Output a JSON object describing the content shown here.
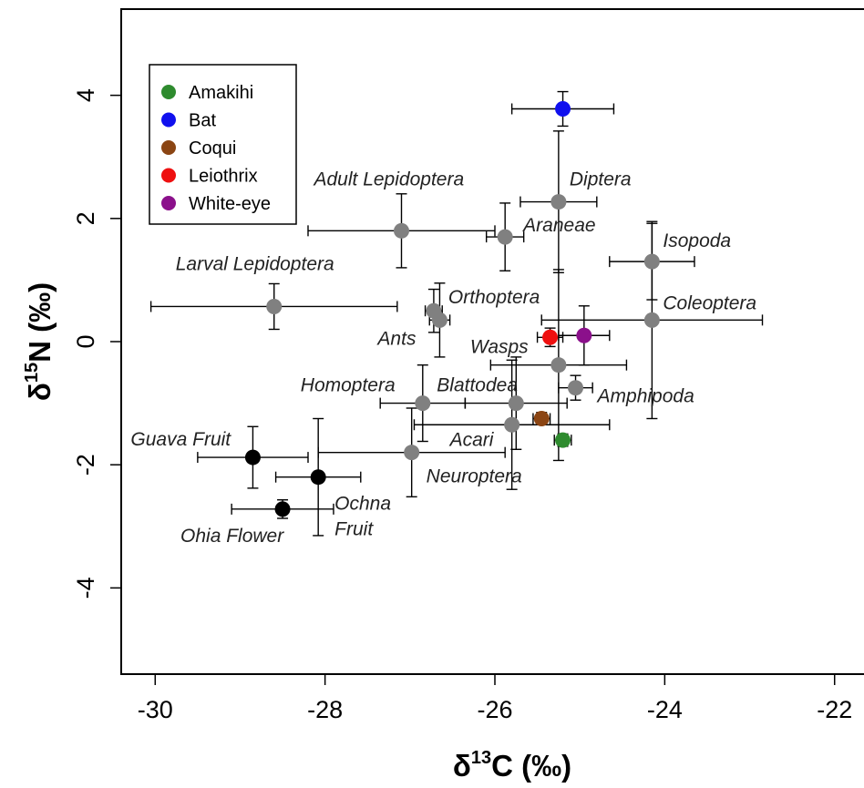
{
  "chart_data": {
    "type": "scatter",
    "title": "",
    "xlabel": "δ13C (‰)",
    "ylabel": "δ15N (‰)",
    "xlabel_parts": [
      "δ",
      "13",
      "C (‰)"
    ],
    "ylabel_parts": [
      "δ",
      "15",
      "N (‰)"
    ],
    "xlim": [
      -30.4,
      -21.6
    ],
    "ylim": [
      -5.4,
      5.4
    ],
    "xticks": [
      -30,
      -28,
      -26,
      -24,
      -22
    ],
    "yticks": [
      -4,
      -2,
      0,
      2,
      4
    ],
    "grid": false,
    "legend_position": "top-left",
    "legend": [
      {
        "name": "Amakihi",
        "color": "#2e8b2e"
      },
      {
        "name": "Bat",
        "color": "#1010ee"
      },
      {
        "name": "Coqui",
        "color": "#8b4513"
      },
      {
        "name": "Leiothrix",
        "color": "#ee1010"
      },
      {
        "name": "White-eye",
        "color": "#8b108b"
      }
    ],
    "points": [
      {
        "x": -25.2,
        "y": 3.78,
        "xerr": 0.6,
        "yerr": 0.28,
        "color": "#1010ee",
        "label": ""
      },
      {
        "x": -25.35,
        "y": 0.07,
        "xerr": 0.15,
        "yerr": 0.15,
        "color": "#ee1010",
        "label": ""
      },
      {
        "x": -24.95,
        "y": 0.1,
        "xerr": 0.3,
        "yerr": 0.48,
        "color": "#8b108b",
        "label": ""
      },
      {
        "x": -25.45,
        "y": -1.25,
        "xerr": 0.1,
        "yerr": 0.1,
        "color": "#8b4513",
        "label": ""
      },
      {
        "x": -25.2,
        "y": -1.6,
        "xerr": 0.1,
        "yerr": 0.1,
        "color": "#2e8b2e",
        "label": ""
      },
      {
        "x": -25.25,
        "y": 2.27,
        "xerr": 0.45,
        "yerr": 1.15,
        "color": "#808080",
        "label": "Diptera"
      },
      {
        "x": -27.1,
        "y": 1.8,
        "xerr": 1.1,
        "yerr": 0.6,
        "color": "#808080",
        "label": "Adult Lepidoptera"
      },
      {
        "x": -25.88,
        "y": 1.7,
        "xerr": 0.22,
        "yerr": 0.55,
        "color": "#808080",
        "label": "Araneae"
      },
      {
        "x": -24.15,
        "y": 1.3,
        "xerr": 0.5,
        "yerr": 0.62,
        "color": "#808080",
        "label": "Isopoda"
      },
      {
        "x": -28.6,
        "y": 0.57,
        "xerr": 1.45,
        "yerr": 0.37,
        "color": "#808080",
        "label": "Larval Lepidoptera"
      },
      {
        "x": -26.72,
        "y": 0.5,
        "xerr": 0.1,
        "yerr": 0.35,
        "color": "#808080",
        "label": "Orthoptera"
      },
      {
        "x": -26.65,
        "y": 0.35,
        "xerr": 0.12,
        "yerr": 0.6,
        "color": "#808080",
        "label": "Ants"
      },
      {
        "x": -24.15,
        "y": 0.35,
        "xerr": 1.3,
        "yerr": 1.6,
        "color": "#808080",
        "label": "Coleoptera"
      },
      {
        "x": -25.25,
        "y": -0.38,
        "xerr": 0.8,
        "yerr": 1.55,
        "color": "#808080",
        "label": "Wasps"
      },
      {
        "x": -25.05,
        "y": -0.75,
        "xerr": 0.2,
        "yerr": 0.2,
        "color": "#808080",
        "label": "Amphipoda"
      },
      {
        "x": -26.85,
        "y": -1.0,
        "xerr": 0.5,
        "yerr": 0.62,
        "color": "#808080",
        "label": "Homoptera"
      },
      {
        "x": -25.75,
        "y": -1.0,
        "xerr": 0.6,
        "yerr": 0.75,
        "color": "#808080",
        "label": "Blattodea"
      },
      {
        "x": -25.8,
        "y": -1.35,
        "xerr": 1.15,
        "yerr": 1.05,
        "color": "#808080",
        "label": "Acari"
      },
      {
        "x": -26.98,
        "y": -1.8,
        "xerr": 1.1,
        "yerr": 0.72,
        "color": "#808080",
        "label": "Neuroptera"
      },
      {
        "x": -28.85,
        "y": -1.88,
        "xerr": 0.65,
        "yerr": 0.5,
        "color": "#000000",
        "label": "Guava Fruit"
      },
      {
        "x": -28.08,
        "y": -2.2,
        "xerr": 0.5,
        "yerr": 0.95,
        "color": "#000000",
        "label": "Ochna Fruit"
      },
      {
        "x": -28.5,
        "y": -2.72,
        "xerr": 0.6,
        "yerr": 0.15,
        "color": "#000000",
        "label": "Ohia Flower"
      }
    ]
  }
}
